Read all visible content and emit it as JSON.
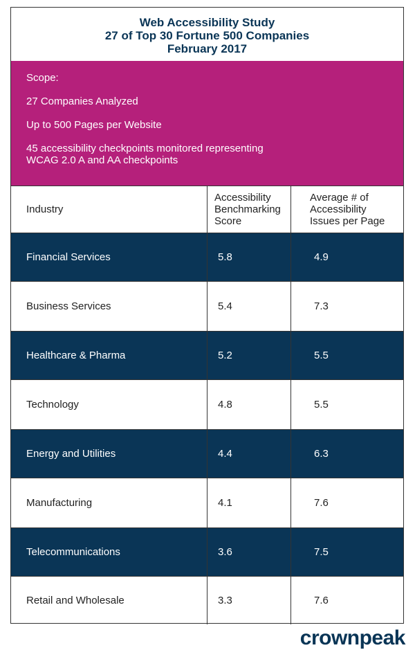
{
  "header": {
    "title": [
      "Web Accessibility Study",
      "27 of Top 30 Fortune 500 Companies",
      "February 2017"
    ]
  },
  "scope": {
    "heading": "Scope:",
    "items": [
      [
        "27 Companies Analyzed"
      ],
      [
        "Up to 500 Pages per Website"
      ],
      [
        "45 accessibility checkpoints monitored representing",
        "WCAG 2.0 A and AA checkpoints"
      ]
    ]
  },
  "table": {
    "columns": [
      [
        "Industry"
      ],
      [
        "Accessibility",
        "Benchmarking",
        "Score"
      ],
      [
        "Average # of",
        "Accessibility",
        "Issues per Page"
      ]
    ],
    "rows": [
      [
        "Financial Services",
        5.8,
        4.9
      ],
      [
        "Business Services",
        5.4,
        7.3
      ],
      [
        "Healthcare & Pharma",
        5.2,
        5.5
      ],
      [
        "Technology",
        4.8,
        5.5
      ],
      [
        "Energy and Utilities",
        4.4,
        6.3
      ],
      [
        "Manufacturing",
        4.1,
        7.6
      ],
      [
        "Telecommunications",
        3.6,
        7.5
      ],
      [
        "Retail and Wholesale",
        3.3,
        7.6
      ]
    ]
  },
  "footer": {
    "logo": "crownpeak"
  }
}
